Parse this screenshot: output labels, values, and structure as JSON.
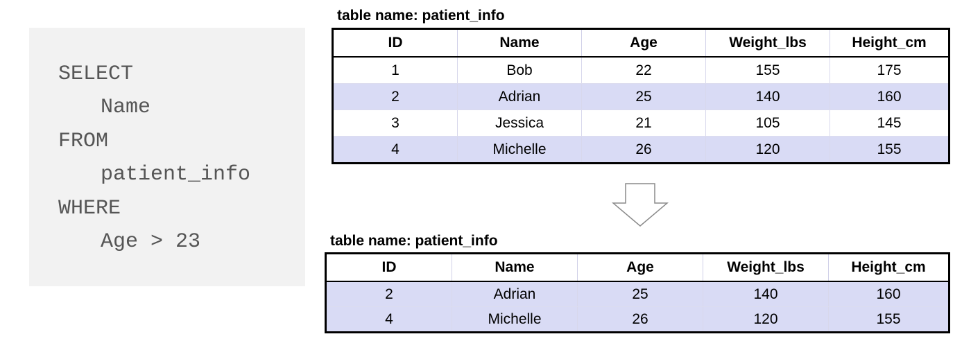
{
  "query": {
    "lines": [
      "SELECT",
      "Name",
      "FROM",
      "patient_info",
      "WHERE",
      "Age > 23"
    ]
  },
  "source_table": {
    "caption": "table name: patient_info",
    "columns": [
      "ID",
      "Name",
      "Age",
      "Weight_lbs",
      "Height_cm"
    ],
    "rows": [
      [
        "1",
        "Bob",
        "22",
        "155",
        "175"
      ],
      [
        "2",
        "Adrian",
        "25",
        "140",
        "160"
      ],
      [
        "3",
        "Jessica",
        "21",
        "105",
        "145"
      ],
      [
        "4",
        "Michelle",
        "26",
        "120",
        "155"
      ]
    ]
  },
  "result_table": {
    "caption": "table name: patient_info",
    "columns": [
      "ID",
      "Name",
      "Age",
      "Weight_lbs",
      "Height_cm"
    ],
    "rows": [
      [
        "2",
        "Adrian",
        "25",
        "140",
        "160"
      ],
      [
        "4",
        "Michelle",
        "26",
        "120",
        "155"
      ]
    ]
  },
  "colors": {
    "code_background": "#f2f2f2",
    "code_text": "#555555",
    "row_highlight": "#d9dbf5",
    "border": "#000000"
  },
  "icons": {
    "transform_arrow": "down-arrow-icon"
  }
}
